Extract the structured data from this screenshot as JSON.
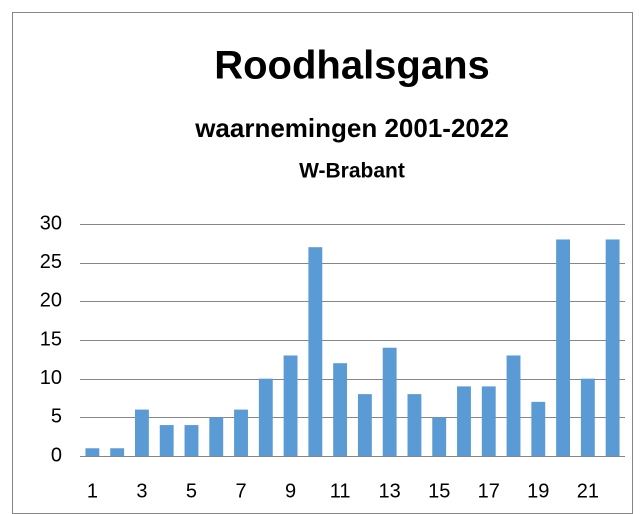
{
  "chart_data": {
    "type": "bar",
    "title": "Roodhalsgans",
    "subtitle": "waarnemingen 2001-2022",
    "subtitle2": "W-Brabant",
    "categories": [
      "1",
      null,
      "3",
      null,
      "5",
      null,
      "7",
      null,
      "9",
      null,
      "11",
      null,
      "13",
      null,
      "15",
      null,
      "17",
      null,
      "19",
      null,
      "21",
      null
    ],
    "values": [
      1,
      1,
      6,
      4,
      4,
      5,
      6,
      10,
      13,
      27,
      12,
      8,
      14,
      8,
      5,
      9,
      9,
      13,
      7,
      28,
      10,
      28
    ],
    "color": "#5b9bd5",
    "ylim": [
      0,
      30
    ],
    "yticks": [
      0,
      5,
      10,
      15,
      20,
      25,
      30
    ],
    "grid": true
  }
}
